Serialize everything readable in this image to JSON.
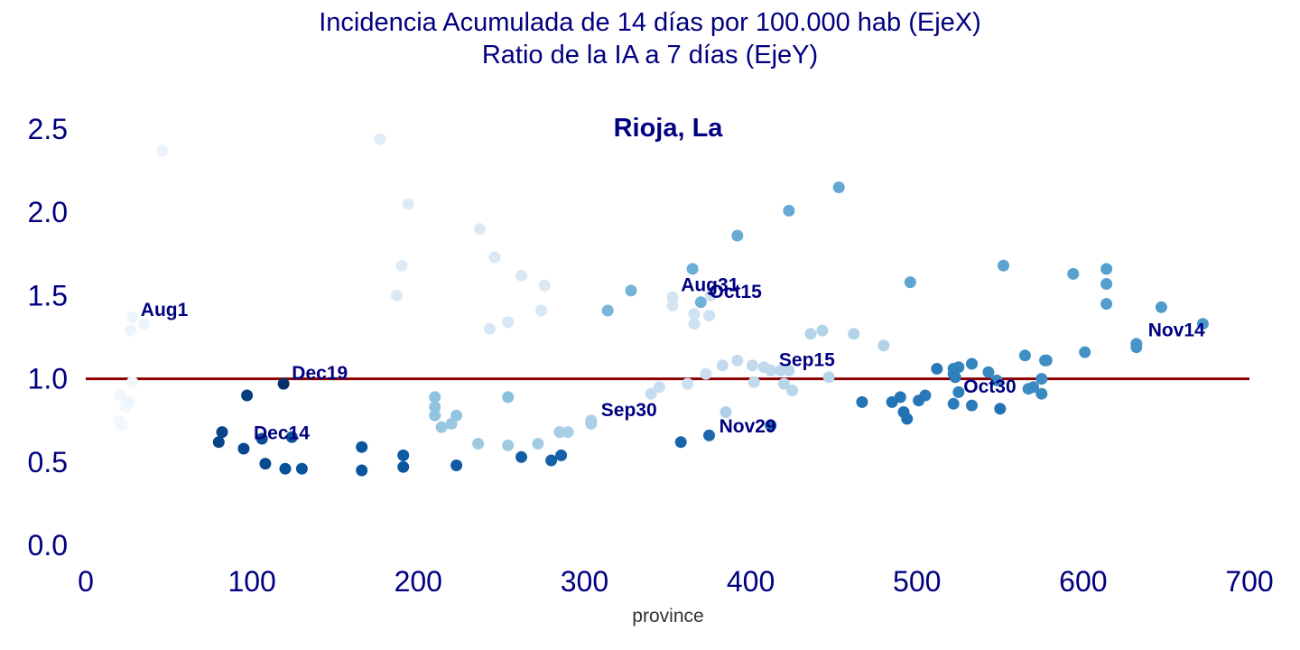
{
  "figure": {
    "title_line1": "Incidencia Acumulada de 14 días por 100.000 hab (EjeX)",
    "title_line2": "Ratio de la IA a 7 días (EjeY)"
  },
  "chart_data": {
    "type": "scatter",
    "panel_title": "Rioja, La",
    "xlabel": "province",
    "ylabel": "",
    "xlim": [
      0,
      700
    ],
    "ylim": [
      0,
      2.6
    ],
    "xticks": [
      "0",
      "100",
      "200",
      "300",
      "400",
      "500",
      "600",
      "700"
    ],
    "yticks": [
      "0.0",
      "0.5",
      "1.0",
      "1.5",
      "2.0",
      "2.5"
    ],
    "grid": false,
    "reference_line": {
      "y": 1.0,
      "color": "#8b0000"
    },
    "colormap": "Blues (light = earlier date, dark = later date)",
    "points": [
      {
        "x": 20,
        "y": 0.75,
        "c": 0.03
      },
      {
        "x": 22,
        "y": 0.72,
        "c": 0.03
      },
      {
        "x": 21,
        "y": 0.9,
        "c": 0.04
      },
      {
        "x": 24,
        "y": 0.83,
        "c": 0.04
      },
      {
        "x": 26,
        "y": 0.86,
        "c": 0.05
      },
      {
        "x": 28,
        "y": 0.98,
        "c": 0.05
      },
      {
        "x": 27,
        "y": 1.29,
        "c": 0.06
      },
      {
        "x": 28,
        "y": 1.37,
        "c": 0.06
      },
      {
        "x": 35,
        "y": 1.33,
        "c": 0.07
      },
      {
        "x": 46,
        "y": 2.37,
        "c": 0.08
      },
      {
        "x": 177,
        "y": 2.44,
        "c": 0.14
      },
      {
        "x": 194,
        "y": 2.05,
        "c": 0.15
      },
      {
        "x": 190,
        "y": 1.68,
        "c": 0.15
      },
      {
        "x": 187,
        "y": 1.5,
        "c": 0.16
      },
      {
        "x": 237,
        "y": 1.9,
        "c": 0.17
      },
      {
        "x": 246,
        "y": 1.73,
        "c": 0.17
      },
      {
        "x": 262,
        "y": 1.62,
        "c": 0.18
      },
      {
        "x": 276,
        "y": 1.56,
        "c": 0.18
      },
      {
        "x": 274,
        "y": 1.41,
        "c": 0.19
      },
      {
        "x": 254,
        "y": 1.34,
        "c": 0.19
      },
      {
        "x": 243,
        "y": 1.3,
        "c": 0.2
      },
      {
        "x": 353,
        "y": 1.49,
        "c": 0.22
      },
      {
        "x": 353,
        "y": 1.44,
        "c": 0.22
      },
      {
        "x": 366,
        "y": 1.39,
        "c": 0.23
      },
      {
        "x": 366,
        "y": 1.33,
        "c": 0.24
      },
      {
        "x": 376,
        "y": 1.5,
        "c": 0.24
      },
      {
        "x": 375,
        "y": 1.38,
        "c": 0.25
      },
      {
        "x": 362,
        "y": 0.97,
        "c": 0.26
      },
      {
        "x": 373,
        "y": 1.03,
        "c": 0.27
      },
      {
        "x": 345,
        "y": 0.95,
        "c": 0.28
      },
      {
        "x": 340,
        "y": 0.91,
        "c": 0.29
      },
      {
        "x": 383,
        "y": 1.08,
        "c": 0.31
      },
      {
        "x": 392,
        "y": 1.11,
        "c": 0.31
      },
      {
        "x": 401,
        "y": 1.08,
        "c": 0.32
      },
      {
        "x": 408,
        "y": 1.07,
        "c": 0.32
      },
      {
        "x": 412,
        "y": 1.05,
        "c": 0.33
      },
      {
        "x": 402,
        "y": 0.98,
        "c": 0.33
      },
      {
        "x": 418,
        "y": 1.05,
        "c": 0.34
      },
      {
        "x": 423,
        "y": 1.05,
        "c": 0.34
      },
      {
        "x": 420,
        "y": 0.97,
        "c": 0.35
      },
      {
        "x": 425,
        "y": 0.93,
        "c": 0.35
      },
      {
        "x": 447,
        "y": 1.01,
        "c": 0.36
      },
      {
        "x": 436,
        "y": 1.27,
        "c": 0.36
      },
      {
        "x": 443,
        "y": 1.29,
        "c": 0.37
      },
      {
        "x": 462,
        "y": 1.27,
        "c": 0.37
      },
      {
        "x": 480,
        "y": 1.2,
        "c": 0.38
      },
      {
        "x": 385,
        "y": 0.8,
        "c": 0.39
      },
      {
        "x": 304,
        "y": 0.75,
        "c": 0.4
      },
      {
        "x": 304,
        "y": 0.73,
        "c": 0.4
      },
      {
        "x": 290,
        "y": 0.68,
        "c": 0.41
      },
      {
        "x": 285,
        "y": 0.68,
        "c": 0.42
      },
      {
        "x": 272,
        "y": 0.61,
        "c": 0.43
      },
      {
        "x": 254,
        "y": 0.6,
        "c": 0.44
      },
      {
        "x": 236,
        "y": 0.61,
        "c": 0.45
      },
      {
        "x": 214,
        "y": 0.71,
        "c": 0.46
      },
      {
        "x": 220,
        "y": 0.73,
        "c": 0.46
      },
      {
        "x": 223,
        "y": 0.78,
        "c": 0.47
      },
      {
        "x": 210,
        "y": 0.78,
        "c": 0.47
      },
      {
        "x": 210,
        "y": 0.83,
        "c": 0.48
      },
      {
        "x": 210,
        "y": 0.89,
        "c": 0.48
      },
      {
        "x": 254,
        "y": 0.89,
        "c": 0.49
      },
      {
        "x": 314,
        "y": 1.41,
        "c": 0.52
      },
      {
        "x": 328,
        "y": 1.53,
        "c": 0.53
      },
      {
        "x": 370,
        "y": 1.46,
        "c": 0.54
      },
      {
        "x": 365,
        "y": 1.66,
        "c": 0.55
      },
      {
        "x": 392,
        "y": 1.86,
        "c": 0.56
      },
      {
        "x": 423,
        "y": 2.01,
        "c": 0.57
      },
      {
        "x": 453,
        "y": 2.15,
        "c": 0.58
      },
      {
        "x": 496,
        "y": 1.58,
        "c": 0.59
      },
      {
        "x": 552,
        "y": 1.68,
        "c": 0.6
      },
      {
        "x": 594,
        "y": 1.63,
        "c": 0.61
      },
      {
        "x": 614,
        "y": 1.66,
        "c": 0.62
      },
      {
        "x": 614,
        "y": 1.57,
        "c": 0.62
      },
      {
        "x": 614,
        "y": 1.45,
        "c": 0.63
      },
      {
        "x": 647,
        "y": 1.43,
        "c": 0.64
      },
      {
        "x": 672,
        "y": 1.33,
        "c": 0.65
      },
      {
        "x": 632,
        "y": 1.21,
        "c": 0.66
      },
      {
        "x": 632,
        "y": 1.19,
        "c": 0.67
      },
      {
        "x": 601,
        "y": 1.16,
        "c": 0.68
      },
      {
        "x": 577,
        "y": 1.11,
        "c": 0.68
      },
      {
        "x": 578,
        "y": 1.11,
        "c": 0.69
      },
      {
        "x": 565,
        "y": 1.14,
        "c": 0.69
      },
      {
        "x": 575,
        "y": 1.0,
        "c": 0.7
      },
      {
        "x": 567,
        "y": 0.94,
        "c": 0.7
      },
      {
        "x": 575,
        "y": 0.91,
        "c": 0.71
      },
      {
        "x": 570,
        "y": 0.95,
        "c": 0.71
      },
      {
        "x": 548,
        "y": 0.99,
        "c": 0.72
      },
      {
        "x": 543,
        "y": 1.04,
        "c": 0.72
      },
      {
        "x": 533,
        "y": 1.09,
        "c": 0.73
      },
      {
        "x": 525,
        "y": 1.07,
        "c": 0.73
      },
      {
        "x": 522,
        "y": 1.06,
        "c": 0.74
      },
      {
        "x": 522,
        "y": 1.03,
        "c": 0.74
      },
      {
        "x": 523,
        "y": 1.01,
        "c": 0.75
      },
      {
        "x": 525,
        "y": 0.92,
        "c": 0.75
      },
      {
        "x": 522,
        "y": 0.85,
        "c": 0.76
      },
      {
        "x": 533,
        "y": 0.84,
        "c": 0.76
      },
      {
        "x": 512,
        "y": 1.06,
        "c": 0.77
      },
      {
        "x": 505,
        "y": 0.9,
        "c": 0.77
      },
      {
        "x": 501,
        "y": 0.87,
        "c": 0.78
      },
      {
        "x": 490,
        "y": 0.89,
        "c": 0.78
      },
      {
        "x": 485,
        "y": 0.86,
        "c": 0.79
      },
      {
        "x": 467,
        "y": 0.86,
        "c": 0.79
      },
      {
        "x": 492,
        "y": 0.8,
        "c": 0.8
      },
      {
        "x": 494,
        "y": 0.76,
        "c": 0.8
      },
      {
        "x": 550,
        "y": 0.82,
        "c": 0.8
      },
      {
        "x": 412,
        "y": 0.72,
        "c": 0.82
      },
      {
        "x": 375,
        "y": 0.66,
        "c": 0.83
      },
      {
        "x": 358,
        "y": 0.62,
        "c": 0.84
      },
      {
        "x": 286,
        "y": 0.54,
        "c": 0.85
      },
      {
        "x": 280,
        "y": 0.51,
        "c": 0.85
      },
      {
        "x": 262,
        "y": 0.53,
        "c": 0.86
      },
      {
        "x": 223,
        "y": 0.48,
        "c": 0.87
      },
      {
        "x": 191,
        "y": 0.54,
        "c": 0.87
      },
      {
        "x": 191,
        "y": 0.47,
        "c": 0.88
      },
      {
        "x": 166,
        "y": 0.45,
        "c": 0.89
      },
      {
        "x": 166,
        "y": 0.59,
        "c": 0.89
      },
      {
        "x": 130,
        "y": 0.46,
        "c": 0.9
      },
      {
        "x": 120,
        "y": 0.46,
        "c": 0.9
      },
      {
        "x": 124,
        "y": 0.65,
        "c": 0.91
      },
      {
        "x": 106,
        "y": 0.64,
        "c": 0.91
      },
      {
        "x": 108,
        "y": 0.49,
        "c": 0.92
      },
      {
        "x": 95,
        "y": 0.58,
        "c": 0.93
      },
      {
        "x": 82,
        "y": 0.68,
        "c": 0.94
      },
      {
        "x": 80,
        "y": 0.62,
        "c": 0.94
      },
      {
        "x": 97,
        "y": 0.9,
        "c": 0.96
      },
      {
        "x": 119,
        "y": 0.97,
        "c": 1.0
      }
    ],
    "annotations": [
      {
        "text": "Aug1",
        "x": 33,
        "y": 1.42
      },
      {
        "text": "Aug31",
        "x": 358,
        "y": 1.57
      },
      {
        "text": "Sep15",
        "x": 417,
        "y": 1.12
      },
      {
        "text": "Sep30",
        "x": 310,
        "y": 0.82
      },
      {
        "text": "Oct15",
        "x": 375,
        "y": 1.53
      },
      {
        "text": "Oct30",
        "x": 528,
        "y": 0.96
      },
      {
        "text": "Nov14",
        "x": 639,
        "y": 1.3
      },
      {
        "text": "Nov29",
        "x": 381,
        "y": 0.72
      },
      {
        "text": "Dec14",
        "x": 101,
        "y": 0.68
      },
      {
        "text": "Dec19",
        "x": 124,
        "y": 1.04
      }
    ]
  }
}
